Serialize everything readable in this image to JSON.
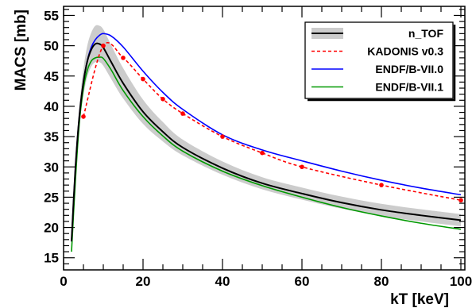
{
  "chart_data": {
    "type": "line",
    "xlabel": "kT  [keV]",
    "ylabel": "MACS  [mb]",
    "xlim": [
      0,
      101
    ],
    "ylim": [
      13,
      56.5
    ],
    "xticks": [
      0,
      20,
      40,
      60,
      80,
      100
    ],
    "yticks": [
      15,
      20,
      25,
      30,
      35,
      40,
      45,
      50,
      55
    ],
    "legend_position": "top-right",
    "series": [
      {
        "name": "n_TOF",
        "style": "solid-with-band",
        "color": "#000000",
        "band_color": "#cccccc",
        "x": [
          2,
          3,
          4,
          5,
          6,
          7,
          8,
          9,
          10,
          12,
          15,
          20,
          25,
          30,
          40,
          50,
          60,
          70,
          80,
          90,
          100
        ],
        "y": [
          17.7,
          30,
          38.5,
          44,
          47.5,
          49.4,
          50.3,
          50.3,
          49.7,
          47.3,
          43.8,
          39.1,
          35.8,
          33.2,
          29.8,
          27.3,
          25.6,
          24.1,
          22.9,
          22,
          21.2
        ],
        "band_halfwidth": [
          0.8,
          1.3,
          1.8,
          2.2,
          2.6,
          2.8,
          3.0,
          3.0,
          3.0,
          2.8,
          2.5,
          2.0,
          1.6,
          1.3,
          1.1,
          1.0,
          1.0,
          1.0,
          1.0,
          1.0,
          1.0
        ]
      },
      {
        "name": "KADONIS v0.3",
        "style": "dashed-with-markers",
        "color": "#ff0000",
        "x": [
          5,
          10,
          15,
          20,
          25,
          30,
          40,
          50,
          60,
          80,
          100
        ],
        "y": [
          38.3,
          50,
          48,
          44.5,
          41.2,
          38.8,
          35,
          32.3,
          30,
          27,
          24.5
        ]
      },
      {
        "name": "ENDF/B-VII.0",
        "style": "solid",
        "color": "#0000ff",
        "x": [
          2,
          3,
          4,
          5,
          6,
          7,
          8,
          9,
          10,
          12,
          15,
          20,
          25,
          30,
          40,
          50,
          60,
          70,
          80,
          90,
          100
        ],
        "y": [
          17.7,
          30,
          38.5,
          44,
          47.6,
          49.8,
          51,
          51.7,
          52,
          51.6,
          49.8,
          45.8,
          42.3,
          39.5,
          35.3,
          32.8,
          31,
          29.3,
          27.8,
          26.5,
          25.4
        ]
      },
      {
        "name": "ENDF/B-VII.1",
        "style": "solid",
        "color": "#009900",
        "x": [
          2,
          3,
          4,
          5,
          6,
          7,
          8,
          9,
          10,
          12,
          15,
          20,
          25,
          30,
          40,
          50,
          60,
          70,
          80,
          90,
          100
        ],
        "y": [
          16,
          28,
          37.5,
          43,
          46,
          47.5,
          48,
          48.1,
          47.9,
          46,
          42.6,
          38.3,
          35.1,
          32.6,
          29.3,
          26.9,
          25,
          23.3,
          21.9,
          20.7,
          19.7
        ]
      }
    ]
  }
}
